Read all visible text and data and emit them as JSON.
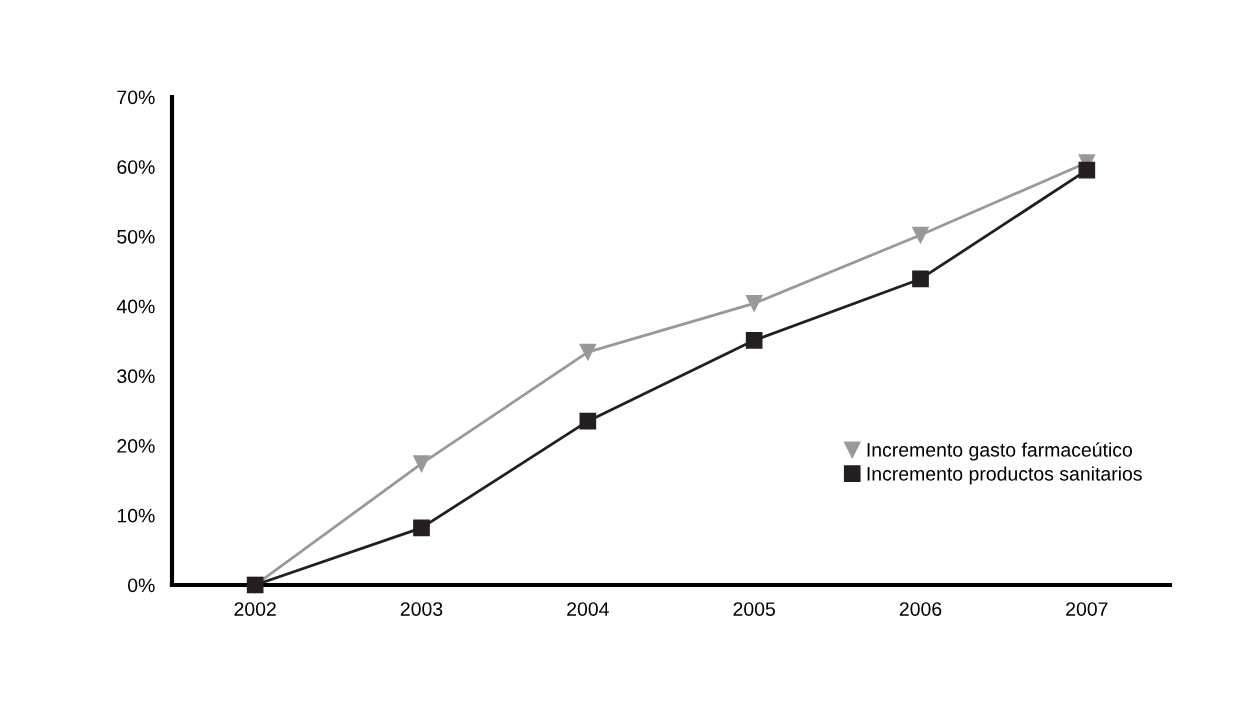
{
  "chart_data": {
    "type": "line",
    "categories": [
      "2002",
      "2003",
      "2004",
      "2005",
      "2006",
      "2007"
    ],
    "series": [
      {
        "name": "Incremento gasto farmaceútico",
        "color": "#999999",
        "marker": "triangle",
        "values": [
          0,
          17.4,
          33.4,
          40.4,
          50.2,
          60.6
        ]
      },
      {
        "name": "Incremento productos sanitarios",
        "color": "#231f20",
        "marker": "square",
        "values": [
          0,
          8.2,
          23.5,
          35.1,
          43.9,
          59.5
        ]
      }
    ],
    "ylim": [
      0,
      70
    ],
    "yticks": [
      {
        "value": 0,
        "label": "0%"
      },
      {
        "value": 10,
        "label": "10%"
      },
      {
        "value": 20,
        "label": "20%"
      },
      {
        "value": 30,
        "label": "30%"
      },
      {
        "value": 40,
        "label": "40%"
      },
      {
        "value": 50,
        "label": "50%"
      },
      {
        "value": 60,
        "label": "60%"
      },
      {
        "value": 70,
        "label": "70%"
      }
    ],
    "grid": false,
    "legend": "right",
    "line_style": "solid"
  }
}
